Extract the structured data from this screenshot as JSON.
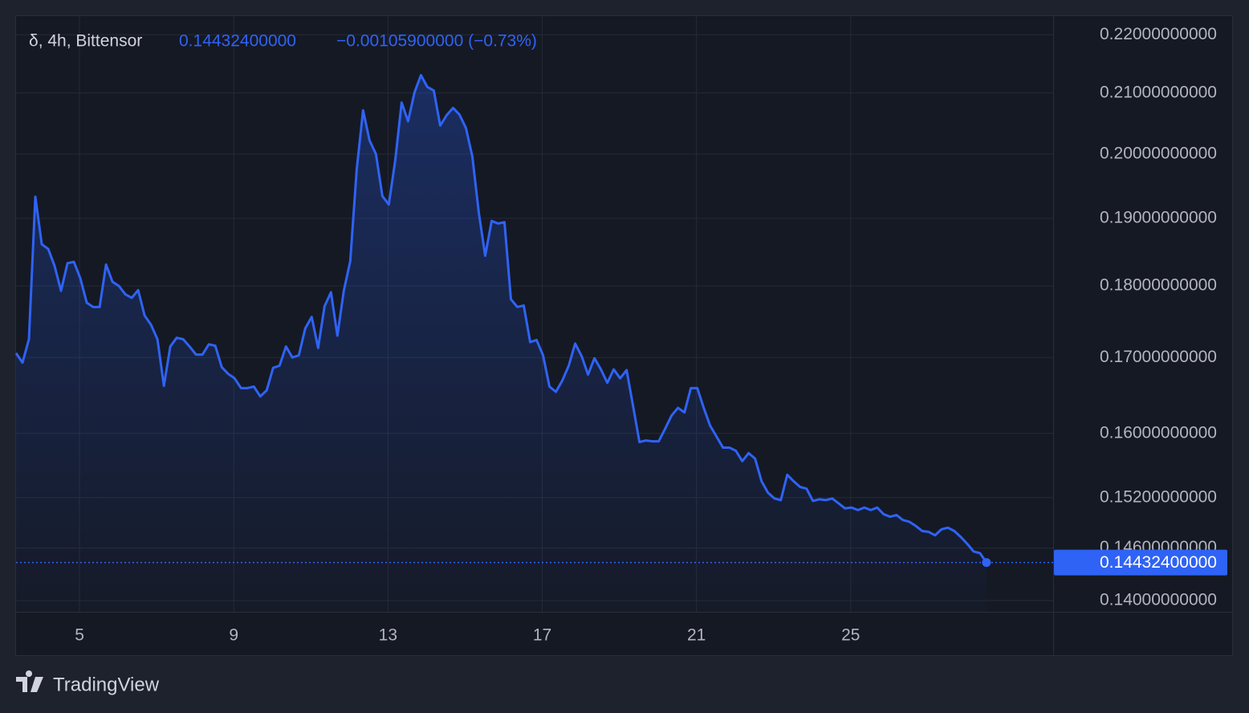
{
  "chart_data": {
    "type": "line",
    "symbol": "δ, 4h, Bittensor",
    "last_price": {
      "value": 0.144324,
      "label": "0.14432400000"
    },
    "change": "−0.00105900000 (−0.73%)",
    "log_scale": true,
    "grid": true,
    "xlim": [
      3.354,
      30.25
    ],
    "xticks": [
      5,
      9,
      13,
      17,
      21,
      25
    ],
    "ylim": [
      0.13875,
      0.2233
    ],
    "yticks": [
      {
        "value": 0.14,
        "label": "0.14000000000"
      },
      {
        "value": 0.146,
        "label": "0.14600000000"
      },
      {
        "value": 0.152,
        "label": "0.15200000000"
      },
      {
        "value": 0.16,
        "label": "0.16000000000"
      },
      {
        "value": 0.17,
        "label": "0.17000000000"
      },
      {
        "value": 0.18,
        "label": "0.18000000000"
      },
      {
        "value": 0.19,
        "label": "0.19000000000"
      },
      {
        "value": 0.2,
        "label": "0.20000000000"
      },
      {
        "value": 0.21,
        "label": "0.21000000000"
      },
      {
        "value": 0.22,
        "label": "0.22000000000"
      }
    ],
    "x": [
      3.354,
      3.521,
      3.688,
      3.854,
      4.021,
      4.188,
      4.354,
      4.521,
      4.688,
      4.854,
      5.021,
      5.188,
      5.354,
      5.521,
      5.688,
      5.854,
      6.021,
      6.188,
      6.354,
      6.521,
      6.688,
      6.854,
      7.021,
      7.188,
      7.354,
      7.521,
      7.688,
      7.854,
      8.021,
      8.188,
      8.354,
      8.521,
      8.688,
      8.854,
      9.021,
      9.188,
      9.354,
      9.521,
      9.688,
      9.854,
      10.021,
      10.188,
      10.354,
      10.521,
      10.688,
      10.854,
      11.021,
      11.188,
      11.354,
      11.521,
      11.688,
      11.854,
      12.021,
      12.188,
      12.354,
      12.521,
      12.688,
      12.854,
      13.021,
      13.188,
      13.354,
      13.521,
      13.688,
      13.854,
      14.021,
      14.188,
      14.354,
      14.521,
      14.688,
      14.854,
      15.021,
      15.188,
      15.354,
      15.521,
      15.688,
      15.854,
      16.021,
      16.188,
      16.354,
      16.521,
      16.688,
      16.854,
      17.021,
      17.188,
      17.354,
      17.521,
      17.688,
      17.854,
      18.021,
      18.188,
      18.354,
      18.521,
      18.688,
      18.854,
      19.021,
      19.188,
      19.354,
      19.521,
      19.688,
      19.854,
      20.021,
      20.188,
      20.354,
      20.521,
      20.688,
      20.854,
      21.021,
      21.188,
      21.354,
      21.521,
      21.688,
      21.854,
      22.021,
      22.188,
      22.354,
      22.521,
      22.688,
      22.854,
      23.021,
      23.188,
      23.354,
      23.521,
      23.688,
      23.854,
      24.021,
      24.188,
      24.354,
      24.521,
      24.688,
      24.854,
      25.021,
      25.188,
      25.354,
      25.521,
      25.688,
      25.854,
      26.021,
      26.188,
      26.354,
      26.521,
      26.688,
      26.854,
      27.021,
      27.188,
      27.354,
      27.521,
      27.688,
      27.854,
      28.021,
      28.188,
      28.354,
      28.521
    ],
    "series": [
      {
        "name": "Bittensor",
        "color": "#2f63f5",
        "values": [
          0.1706,
          0.1693,
          0.1725,
          0.1933,
          0.1861,
          0.1854,
          0.1829,
          0.1793,
          0.1833,
          0.1835,
          0.1811,
          0.1776,
          0.177,
          0.177,
          0.1831,
          0.1806,
          0.18,
          0.1788,
          0.1783,
          0.1794,
          0.1758,
          0.1745,
          0.1725,
          0.1662,
          0.1715,
          0.1727,
          0.1725,
          0.1715,
          0.1704,
          0.1704,
          0.1718,
          0.1716,
          0.1687,
          0.1678,
          0.1672,
          0.1659,
          0.1659,
          0.1661,
          0.1648,
          0.1656,
          0.1686,
          0.1689,
          0.1715,
          0.17,
          0.1703,
          0.174,
          0.1756,
          0.1713,
          0.1771,
          0.1791,
          0.173,
          0.1793,
          0.1836,
          0.1975,
          0.2071,
          0.2022,
          0.2,
          0.1934,
          0.1921,
          0.199,
          0.2084,
          0.2053,
          0.2101,
          0.213,
          0.211,
          0.2104,
          0.2046,
          0.2063,
          0.2075,
          0.2064,
          0.2042,
          0.1996,
          0.1909,
          0.1844,
          0.1896,
          0.1892,
          0.1894,
          0.1781,
          0.177,
          0.1772,
          0.1721,
          0.1724,
          0.1703,
          0.1661,
          0.1654,
          0.1669,
          0.1689,
          0.1719,
          0.1702,
          0.1677,
          0.1699,
          0.1684,
          0.1666,
          0.1684,
          0.1672,
          0.1683,
          0.1636,
          0.1589,
          0.1591,
          0.159,
          0.159,
          0.1606,
          0.1623,
          0.1633,
          0.1627,
          0.1659,
          0.1659,
          0.1633,
          0.161,
          0.1596,
          0.1582,
          0.1582,
          0.1578,
          0.1565,
          0.1575,
          0.1568,
          0.154,
          0.1526,
          0.1519,
          0.1517,
          0.1548,
          0.154,
          0.1533,
          0.1531,
          0.1516,
          0.1518,
          0.1517,
          0.1519,
          0.1513,
          0.1507,
          0.1508,
          0.1505,
          0.1508,
          0.1505,
          0.1508,
          0.15,
          0.1497,
          0.1499,
          0.1493,
          0.1491,
          0.1486,
          0.148,
          0.1479,
          0.1475,
          0.1482,
          0.1484,
          0.148,
          0.1473,
          0.1465,
          0.1456,
          0.1454,
          0.144324
        ]
      }
    ]
  },
  "branding": {
    "logo_text": "TradingView"
  }
}
